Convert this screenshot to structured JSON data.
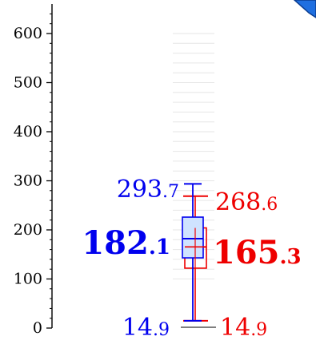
{
  "chart_data": {
    "type": "boxplot",
    "ylim": [
      0,
      640
    ],
    "yticks": [
      0,
      100,
      200,
      300,
      400,
      500,
      600
    ],
    "ytick_labels": [
      "0",
      "100",
      "200",
      "300",
      "400",
      "500",
      "600"
    ],
    "minor_tick_step": 20,
    "grid": "faint horizontal lines near the box",
    "series": [
      {
        "color": "#0000ee",
        "fill": "#cfe3ff",
        "whisker_low": 14.9,
        "q1": 143,
        "median": 182.1,
        "q3": 226,
        "whisker_high": 293.7,
        "labels": {
          "max": {
            "int": "293",
            "frac": ".7"
          },
          "median": {
            "int": "182",
            "frac": ".1"
          },
          "min": {
            "int": "14",
            "frac": ".9"
          }
        }
      },
      {
        "color": "#ee0000",
        "whisker_low": 14.9,
        "q1": 122,
        "median": 165.3,
        "q3": 204,
        "whisker_high": 268.6,
        "labels": {
          "max": {
            "int": "268",
            "frac": ".6"
          },
          "median": {
            "int": "165",
            "frac": ".3"
          },
          "min": {
            "int": "14",
            "frac": ".9"
          }
        }
      }
    ]
  },
  "colors": {
    "corner_icon": "#1f6fe0"
  },
  "icons": {
    "corner": "tab-shape-icon"
  }
}
